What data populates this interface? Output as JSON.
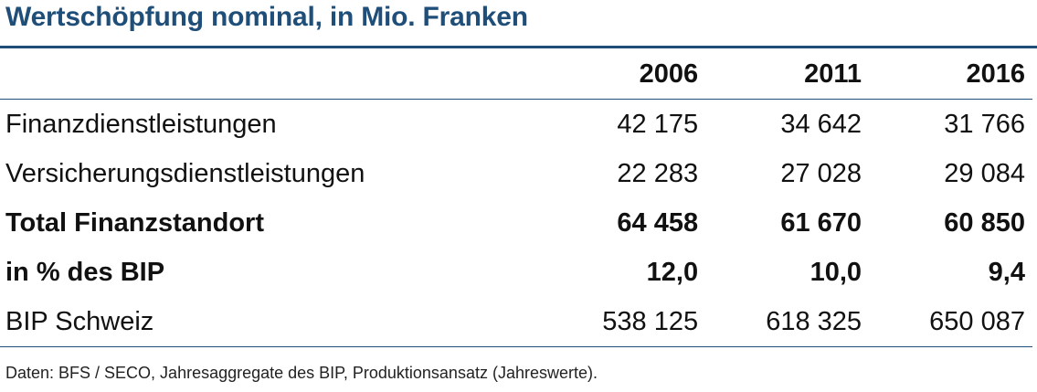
{
  "title": "Wertschöpfung nominal, in Mio. Franken",
  "table": {
    "columns": [
      "2006",
      "2011",
      "2016"
    ],
    "rows": [
      {
        "label": "Finanzdienstleistungen",
        "values": [
          "42 175",
          "34 642",
          "31 766"
        ],
        "bold": false
      },
      {
        "label": "Versicherungsdienstleistungen",
        "values": [
          "22 283",
          "27 028",
          "29 084"
        ],
        "bold": false
      },
      {
        "label": "Total Finanzstandort",
        "values": [
          "64 458",
          "61 670",
          "60 850"
        ],
        "bold": true
      },
      {
        "label": "in % des BIP",
        "values": [
          "12,0",
          "10,0",
          "9,4"
        ],
        "bold": true
      },
      {
        "label": "BIP Schweiz",
        "values": [
          "538 125",
          "618 325",
          "650 087"
        ],
        "bold": false
      }
    ]
  },
  "source": "Daten: BFS / SECO, Jahresaggregate des BIP, Produktionsansatz (Jahreswerte).",
  "colors": {
    "title": "#1f4e79",
    "rule": "#1f4e79",
    "text": "#111111"
  }
}
